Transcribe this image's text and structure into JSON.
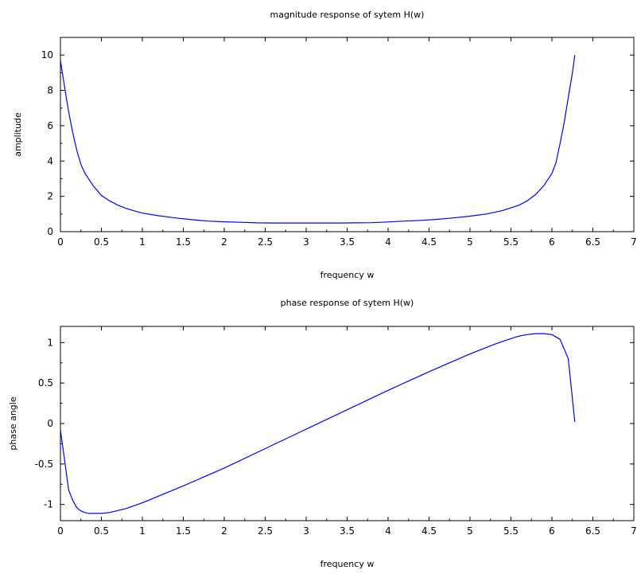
{
  "chart_data": [
    {
      "type": "line",
      "title": "magnitude response of sytem H(w)",
      "xlabel": "frequency w",
      "ylabel": "amplitude",
      "xlim": [
        0,
        7
      ],
      "ylim": [
        0,
        11
      ],
      "xticks": [
        "0",
        "0.5",
        "1",
        "1.5",
        "2",
        "2.5",
        "3",
        "3.5",
        "4",
        "4.5",
        "5",
        "5.5",
        "6",
        "6.5",
        "7"
      ],
      "yticks": [
        "0",
        "2",
        "4",
        "6",
        "8",
        "10"
      ],
      "grid": false,
      "series": [
        {
          "color": "#0000ff",
          "x": [
            0,
            0.05,
            0.1,
            0.15,
            0.2,
            0.25,
            0.3,
            0.4,
            0.5,
            0.6,
            0.7,
            0.8,
            0.9,
            1.0,
            1.2,
            1.4,
            1.6,
            1.8,
            2.0,
            2.2,
            2.4,
            2.6,
            2.8,
            3.0,
            3.2,
            3.4,
            3.6,
            3.8,
            4.0,
            4.2,
            4.4,
            4.6,
            4.8,
            5.0,
            5.2,
            5.4,
            5.6,
            5.7,
            5.8,
            5.9,
            6.0,
            6.05,
            6.1,
            6.15,
            6.2,
            6.25,
            6.28
          ],
          "y": [
            9.7,
            8.2,
            6.8,
            5.6,
            4.6,
            3.8,
            3.3,
            2.6,
            2.05,
            1.75,
            1.5,
            1.32,
            1.18,
            1.05,
            0.9,
            0.78,
            0.68,
            0.6,
            0.56,
            0.53,
            0.5,
            0.49,
            0.49,
            0.49,
            0.49,
            0.49,
            0.5,
            0.51,
            0.55,
            0.6,
            0.64,
            0.7,
            0.78,
            0.88,
            1.0,
            1.2,
            1.5,
            1.75,
            2.1,
            2.6,
            3.3,
            3.9,
            5.0,
            6.2,
            7.6,
            9.0,
            10.0
          ]
        }
      ]
    },
    {
      "type": "line",
      "title": "phase response of sytem H(w)",
      "xlabel": "frequency w",
      "ylabel": "phase angle",
      "xlim": [
        0,
        7
      ],
      "ylim": [
        -1.2,
        1.2
      ],
      "xticks": [
        "0",
        "0.5",
        "1",
        "1.5",
        "2",
        "2.5",
        "3",
        "3.5",
        "4",
        "4.5",
        "5",
        "5.5",
        "6",
        "6.5",
        "7"
      ],
      "yticks": [
        "-1",
        "-0.5",
        "0",
        "0.5",
        "1"
      ],
      "grid": false,
      "series": [
        {
          "color": "#0000ff",
          "x": [
            0,
            0.05,
            0.1,
            0.15,
            0.2,
            0.25,
            0.3,
            0.35,
            0.4,
            0.45,
            0.5,
            0.6,
            0.8,
            1.0,
            1.5,
            2.0,
            2.5,
            3.0,
            3.5,
            4.0,
            4.5,
            5.0,
            5.3,
            5.5,
            5.6,
            5.7,
            5.8,
            5.9,
            6.0,
            6.1,
            6.2,
            6.28
          ],
          "y": [
            -0.08,
            -0.45,
            -0.82,
            -0.95,
            -1.04,
            -1.08,
            -1.1,
            -1.11,
            -1.11,
            -1.11,
            -1.11,
            -1.1,
            -1.05,
            -0.98,
            -0.77,
            -0.55,
            -0.31,
            -0.07,
            0.17,
            0.41,
            0.64,
            0.86,
            0.98,
            1.05,
            1.08,
            1.1,
            1.11,
            1.11,
            1.1,
            1.04,
            0.8,
            0.02
          ]
        }
      ]
    }
  ]
}
